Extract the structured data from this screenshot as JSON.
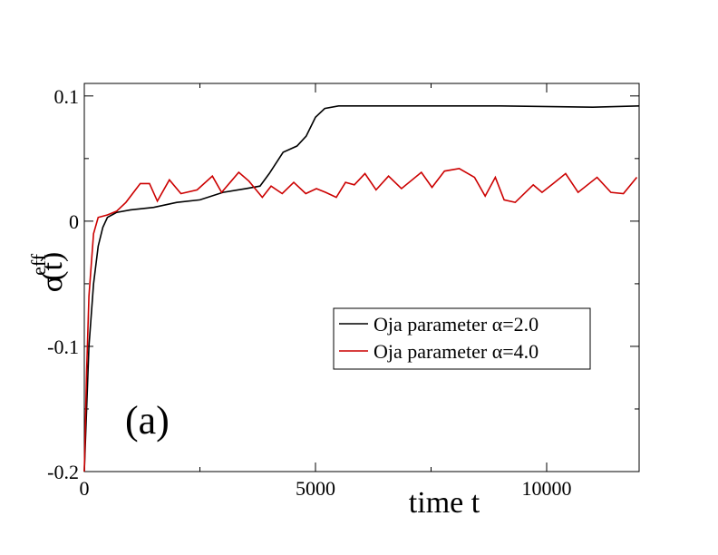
{
  "chart_data": {
    "type": "line",
    "xlabel": "time t",
    "ylabel": {
      "symbol": "σ",
      "superscript": "eff",
      "suffix": "(t)"
    },
    "annotation": "(a)",
    "xlim": [
      0,
      12000
    ],
    "ylim": [
      -0.2,
      0.11
    ],
    "xticks": [
      0,
      5000,
      10000
    ],
    "yticks": [
      {
        "value": -0.2,
        "label": "-0.2"
      },
      {
        "value": -0.1,
        "label": "-0.1"
      },
      0,
      0.1
    ],
    "xminor_ticks": [
      2500,
      7500
    ],
    "yminor_ticks": [
      -0.15,
      -0.05,
      0.05
    ],
    "legend_position": "right",
    "series": [
      {
        "name": "Oja parameter α=2.0",
        "color": "#000000",
        "x": [
          0,
          50,
          100,
          200,
          300,
          400,
          500,
          700,
          1000,
          1500,
          2000,
          2500,
          3000,
          3500,
          3800,
          4000,
          4300,
          4600,
          4800,
          5000,
          5200,
          5500,
          7000,
          9000,
          11000,
          12000
        ],
        "values": [
          -0.2,
          -0.15,
          -0.1,
          -0.05,
          -0.02,
          -0.005,
          0.003,
          0.007,
          0.009,
          0.011,
          0.015,
          0.017,
          0.023,
          0.026,
          0.028,
          0.038,
          0.055,
          0.06,
          0.068,
          0.083,
          0.09,
          0.092,
          0.092,
          0.092,
          0.091,
          0.092
        ]
      },
      {
        "name": "Oja parameter α=4.0",
        "color": "#cc0000",
        "x": [
          0,
          50,
          100,
          200,
          300,
          500,
          700,
          900,
          1210,
          1410,
          1580,
          1840,
          2090,
          2440,
          2770,
          2970,
          3340,
          3560,
          3850,
          4040,
          4280,
          4530,
          4790,
          5020,
          5220,
          5450,
          5650,
          5840,
          6070,
          6310,
          6580,
          6860,
          7290,
          7520,
          7790,
          8110,
          8440,
          8670,
          8890,
          9080,
          9320,
          9710,
          9900,
          10140,
          10410,
          10680,
          11090,
          11390,
          11660,
          11950
        ],
        "values": [
          -0.2,
          -0.12,
          -0.06,
          -0.01,
          0.003,
          0.005,
          0.008,
          0.015,
          0.03,
          0.03,
          0.016,
          0.033,
          0.022,
          0.025,
          0.036,
          0.023,
          0.039,
          0.032,
          0.019,
          0.028,
          0.022,
          0.031,
          0.022,
          0.026,
          0.023,
          0.019,
          0.031,
          0.029,
          0.038,
          0.025,
          0.036,
          0.026,
          0.039,
          0.027,
          0.04,
          0.042,
          0.035,
          0.02,
          0.035,
          0.017,
          0.015,
          0.029,
          0.023,
          0.03,
          0.038,
          0.023,
          0.035,
          0.023,
          0.022,
          0.035
        ]
      }
    ]
  }
}
